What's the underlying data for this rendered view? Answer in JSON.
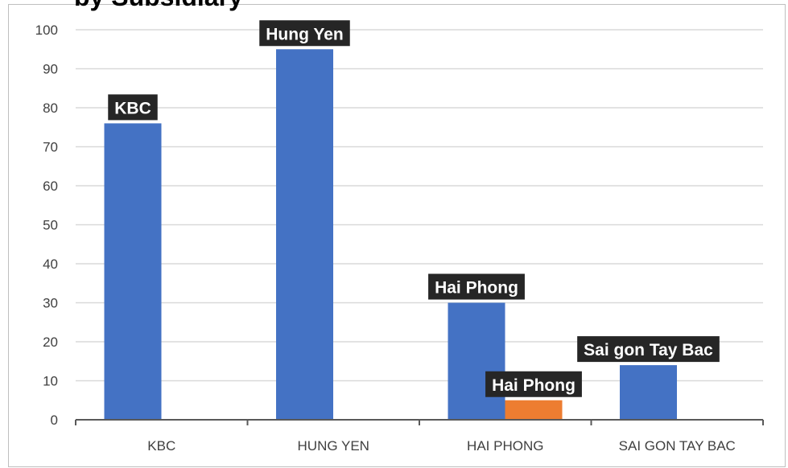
{
  "chart_data": {
    "type": "bar",
    "title": "by Subsidiary",
    "xlabel": "",
    "ylabel": "",
    "ylim": [
      0,
      100
    ],
    "yticks": [
      0,
      10,
      20,
      30,
      40,
      50,
      60,
      70,
      80,
      90,
      100
    ],
    "categories": [
      "KBC",
      "HUNG YEN",
      "HAI PHONG",
      "SAI GON TAY BAC"
    ],
    "grid": true,
    "legend": "none",
    "series": [
      {
        "color": "#4472c4",
        "values": [
          76,
          95,
          30,
          14
        ]
      },
      {
        "color": "#ed7d31",
        "values": [
          null,
          null,
          5,
          null
        ]
      }
    ],
    "data_labels": [
      {
        "series": 0,
        "category": 0,
        "text": "KBC"
      },
      {
        "series": 0,
        "category": 1,
        "text": "Hung Yen"
      },
      {
        "series": 0,
        "category": 2,
        "text": "Hai Phong"
      },
      {
        "series": 1,
        "category": 2,
        "text": "Hai Phong"
      },
      {
        "series": 0,
        "category": 3,
        "text": "Sai gon Tay Bac"
      }
    ],
    "colors": {
      "grid": "#d9d9d9",
      "axis": "#595959",
      "label_bg": "#262626",
      "label_text": "#ffffff",
      "tick_text": "#404040"
    }
  }
}
